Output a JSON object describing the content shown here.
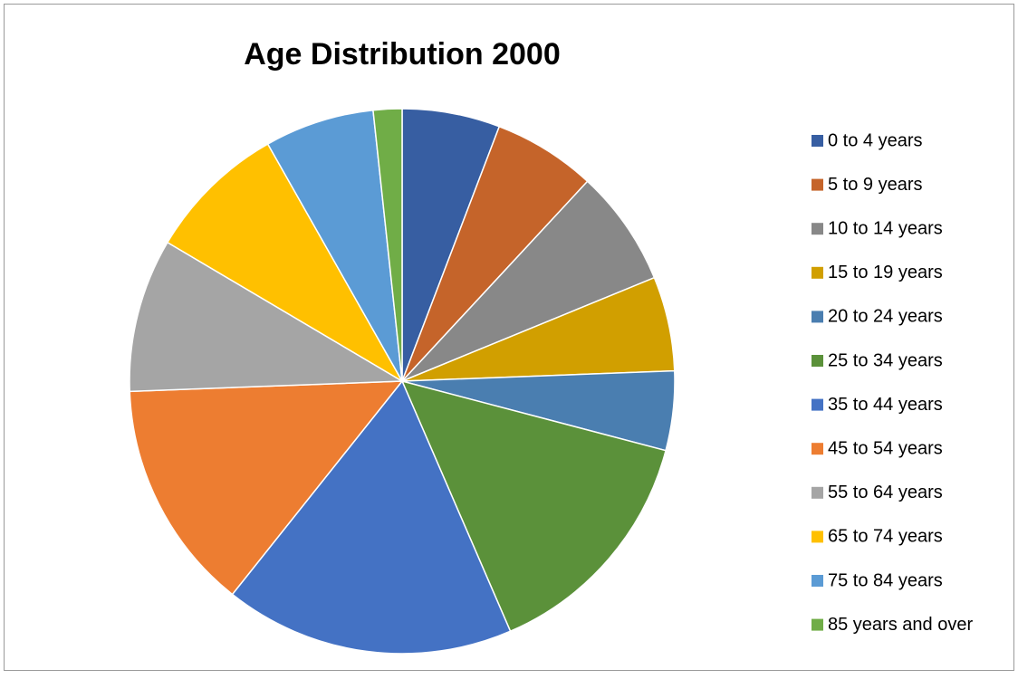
{
  "chart_data": {
    "type": "pie",
    "title": "Age Distribution 2000",
    "categories": [
      "0 to 4 years",
      "5 to 9 years",
      "10 to 14 years",
      "15 to 19 years",
      "20 to 24 years",
      "25 to 34 years",
      "35 to 44 years",
      "45 to 54 years",
      "55 to 64 years",
      "65 to 74 years",
      "75 to 84 years",
      "85 years and over"
    ],
    "values": [
      5.8,
      6.1,
      6.9,
      5.6,
      4.7,
      14.4,
      17.2,
      13.7,
      9.1,
      8.3,
      6.5,
      1.7
    ],
    "colors": [
      "#375ea2",
      "#c5642a",
      "#888888",
      "#d19f00",
      "#4a7eb0",
      "#5b913a",
      "#4472c4",
      "#ed7d31",
      "#a5a5a5",
      "#ffc000",
      "#5b9bd5",
      "#70ad47"
    ],
    "legend": "right"
  }
}
